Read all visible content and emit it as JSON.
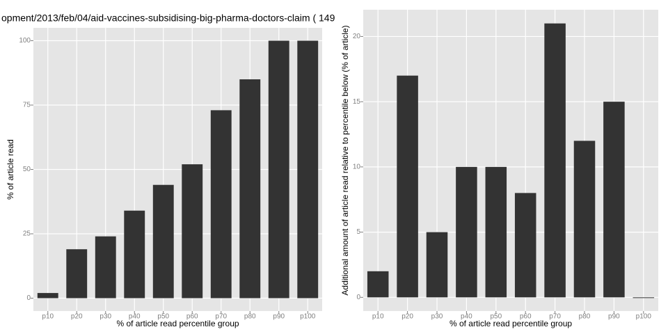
{
  "chart_data": [
    {
      "type": "bar",
      "title": "opment/2013/feb/04/aid-vaccines-subsidising-big-pharma-doctors-claim ( 149",
      "x_label": "% of article read percentile group",
      "y_label": "% of article read",
      "categories": [
        "p10",
        "p20",
        "p30",
        "p40",
        "p50",
        "p60",
        "p70",
        "p80",
        "p90",
        "p100"
      ],
      "values": [
        2,
        19,
        24,
        34,
        44,
        52,
        73,
        85,
        100,
        100
      ],
      "color": "#333333",
      "ylim": [
        -5,
        105
      ],
      "yticks": [
        0,
        25,
        50,
        75,
        100
      ],
      "grid": true
    },
    {
      "type": "bar",
      "x_label": "% of article read percentile group",
      "y_label": "Additional amount of article read relative to percentile below (% of article)",
      "categories": [
        "p10",
        "p20",
        "p30",
        "p40",
        "p50",
        "p60",
        "p70",
        "p80",
        "p90",
        "p100"
      ],
      "values": [
        2,
        17,
        5,
        10,
        10,
        8,
        21,
        12,
        15,
        0
      ],
      "color": "#333333",
      "ylim": [
        -1.05,
        22.05
      ],
      "yticks": [
        0,
        5,
        10,
        15,
        20
      ],
      "grid": true
    }
  ]
}
